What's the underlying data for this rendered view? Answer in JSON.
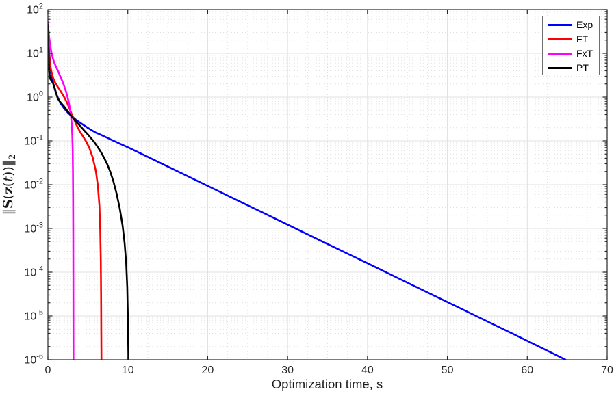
{
  "figure": {
    "background": "#ffffff",
    "type_hint": "matlab-style convergence plot"
  },
  "colors": {
    "axis": "#262626",
    "tick_label": "#262626",
    "major_grid": "#e0e0e0",
    "minor_grid": "#e0e0e0",
    "background": "#ffffff",
    "legend_border": "#6f6f6f"
  },
  "chart_data": {
    "type": "line",
    "title": "",
    "xlabel": "Optimization time, s",
    "ylabel": "||S(z(t))||_2",
    "ylabel_parts": [
      {
        "t": "‖"
      },
      {
        "t": "S",
        "b": true
      },
      {
        "t": "("
      },
      {
        "t": "z",
        "b": true
      },
      {
        "t": "("
      },
      {
        "t": "t",
        "i": true
      },
      {
        "t": ")"
      },
      {
        "t": ")"
      },
      {
        "t": "‖"
      },
      {
        "t": "2",
        "sub": true
      }
    ],
    "xlim": [
      0,
      70
    ],
    "ylim_exponents": [
      -6,
      2
    ],
    "x_ticks": [
      0,
      10,
      20,
      30,
      40,
      50,
      60,
      70
    ],
    "x_minor_step": 2.5,
    "y_tick_base": "10",
    "y_tick_exponents": [
      2,
      1,
      0,
      -1,
      -2,
      -3,
      -4,
      -5,
      -6
    ],
    "yscale": "log",
    "grid": {
      "major": "on",
      "minor": "on"
    },
    "legend": {
      "position": "top-right",
      "entries": [
        {
          "label": "Exp",
          "color": "#0000ff"
        },
        {
          "label": "FT",
          "color": "#ff0000"
        },
        {
          "label": "FxT",
          "color": "#ff00ff"
        },
        {
          "label": "PT",
          "color": "#000000"
        }
      ]
    },
    "series": [
      {
        "name": "Exp",
        "color": "#0000ff",
        "points": [
          [
            0,
            45
          ],
          [
            0.06,
            26
          ],
          [
            0.12,
            15
          ],
          [
            0.2,
            8.5
          ],
          [
            0.3,
            5.2
          ],
          [
            0.45,
            3.2
          ],
          [
            0.6,
            2.3
          ],
          [
            0.8,
            1.65
          ],
          [
            1.0,
            1.25
          ],
          [
            1.3,
            0.92
          ],
          [
            1.6,
            0.72
          ],
          [
            2.0,
            0.56
          ],
          [
            2.5,
            0.44
          ],
          [
            3.0,
            0.365
          ],
          [
            3.5,
            0.305
          ],
          [
            4.0,
            0.262
          ],
          [
            4.5,
            0.228
          ],
          [
            5.0,
            0.198
          ],
          [
            5.5,
            0.174
          ],
          [
            6.0,
            0.154
          ],
          [
            6.5,
            0.141
          ],
          [
            7.0,
            0.128
          ],
          [
            7.5,
            0.116
          ],
          [
            8.0,
            0.105
          ],
          [
            8.5,
            0.0955
          ],
          [
            9.0,
            0.0865
          ],
          [
            9.5,
            0.0785
          ],
          [
            10,
            0.0715
          ],
          [
            12,
            0.0478
          ],
          [
            15,
            0.0259
          ],
          [
            20,
            0.00935
          ],
          [
            25,
            0.00338
          ],
          [
            30,
            0.00122
          ],
          [
            35,
            0.00044
          ],
          [
            40,
            0.00016
          ],
          [
            45,
            5.75e-05
          ],
          [
            50,
            2.08e-05
          ],
          [
            55,
            7.5e-06
          ],
          [
            60,
            2.7e-06
          ],
          [
            64.8,
            1e-06
          ]
        ]
      },
      {
        "name": "FT",
        "color": "#ff0000",
        "points": [
          [
            0,
            45
          ],
          [
            0.05,
            26
          ],
          [
            0.1,
            15
          ],
          [
            0.2,
            7.8
          ],
          [
            0.35,
            4.6
          ],
          [
            0.5,
            3.4
          ],
          [
            0.7,
            2.6
          ],
          [
            0.9,
            2.15
          ],
          [
            1.2,
            1.75
          ],
          [
            1.5,
            1.45
          ],
          [
            1.8,
            1.18
          ],
          [
            2.1,
            0.95
          ],
          [
            2.4,
            0.74
          ],
          [
            2.7,
            0.55
          ],
          [
            3.0,
            0.4
          ],
          [
            3.3,
            0.3
          ],
          [
            3.6,
            0.225
          ],
          [
            4.0,
            0.163
          ],
          [
            4.4,
            0.126
          ],
          [
            4.8,
            0.096
          ],
          [
            5.2,
            0.068
          ],
          [
            5.6,
            0.042
          ],
          [
            6.0,
            0.0205
          ],
          [
            6.25,
            0.0095
          ],
          [
            6.45,
            0.0032
          ],
          [
            6.55,
            0.0009
          ],
          [
            6.62,
            0.00018
          ],
          [
            6.66,
            2.5e-05
          ],
          [
            6.69,
            2e-06
          ],
          [
            6.7,
            1e-06
          ]
        ]
      },
      {
        "name": "FxT",
        "color": "#ff00ff",
        "points": [
          [
            0,
            52
          ],
          [
            0.06,
            36
          ],
          [
            0.12,
            27
          ],
          [
            0.2,
            20
          ],
          [
            0.3,
            14.5
          ],
          [
            0.45,
            10.2
          ],
          [
            0.6,
            7.9
          ],
          [
            0.8,
            6.1
          ],
          [
            1.0,
            5.0
          ],
          [
            1.2,
            4.15
          ],
          [
            1.4,
            3.45
          ],
          [
            1.6,
            2.85
          ],
          [
            1.8,
            2.32
          ],
          [
            2.0,
            1.87
          ],
          [
            2.2,
            1.46
          ],
          [
            2.4,
            1.1
          ],
          [
            2.6,
            0.78
          ],
          [
            2.75,
            0.56
          ],
          [
            2.88,
            0.38
          ],
          [
            2.98,
            0.24
          ],
          [
            3.05,
            0.135
          ],
          [
            3.1,
            0.062
          ],
          [
            3.13,
            0.022
          ],
          [
            3.15,
            0.006
          ],
          [
            3.17,
            0.0008
          ],
          [
            3.18,
            8e-05
          ],
          [
            3.19,
            5e-06
          ],
          [
            3.195,
            1e-06
          ]
        ]
      },
      {
        "name": "PT",
        "color": "#000000",
        "points": [
          [
            0,
            45
          ],
          [
            0.03,
            24
          ],
          [
            0.06,
            12
          ],
          [
            0.1,
            6.8
          ],
          [
            0.15,
            4.4
          ],
          [
            0.2,
            3.3
          ],
          [
            0.3,
            2.6
          ],
          [
            0.45,
            2.35
          ],
          [
            0.6,
            2.15
          ],
          [
            0.75,
            1.85
          ],
          [
            0.9,
            1.5
          ],
          [
            1.05,
            1.18
          ],
          [
            1.2,
            0.97
          ],
          [
            1.4,
            0.83
          ],
          [
            1.6,
            0.75
          ],
          [
            1.8,
            0.68
          ],
          [
            2.0,
            0.62
          ],
          [
            2.3,
            0.52
          ],
          [
            2.6,
            0.44
          ],
          [
            3.0,
            0.355
          ],
          [
            3.4,
            0.29
          ],
          [
            3.8,
            0.243
          ],
          [
            4.2,
            0.203
          ],
          [
            4.6,
            0.168
          ],
          [
            5.0,
            0.14
          ],
          [
            5.4,
            0.115
          ],
          [
            5.8,
            0.094
          ],
          [
            6.2,
            0.074
          ],
          [
            6.6,
            0.057
          ],
          [
            7.0,
            0.042
          ],
          [
            7.4,
            0.03
          ],
          [
            7.8,
            0.0198
          ],
          [
            8.2,
            0.0118
          ],
          [
            8.6,
            0.0062
          ],
          [
            9.0,
            0.0028
          ],
          [
            9.35,
            0.00115
          ],
          [
            9.6,
            0.00046
          ],
          [
            9.8,
            0.000155
          ],
          [
            9.93,
            4.5e-05
          ],
          [
            10.0,
            1.1e-05
          ],
          [
            10.05,
            2.5e-06
          ],
          [
            10.08,
            1e-06
          ]
        ]
      }
    ]
  }
}
